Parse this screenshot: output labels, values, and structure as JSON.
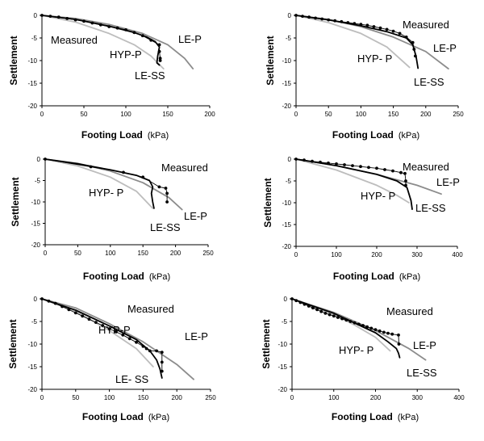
{
  "chart_data": [
    {
      "type": "line",
      "xlabel": "Footing Load",
      "xunit": "(kPa)",
      "ylabel": "Settlement",
      "xlim": [
        0,
        200
      ],
      "xticks": [
        0,
        50,
        100,
        150,
        200
      ],
      "ylim": [
        -20,
        0
      ],
      "yticks": [
        0,
        -5,
        -10,
        -15,
        -20
      ],
      "labels": {
        "measured": "Measured",
        "lep": "LE-P",
        "hyp": "HYP-P",
        "less": "LE-SS"
      },
      "series": [
        {
          "key": "lep",
          "x": [
            0,
            40,
            80,
            120,
            150,
            170,
            180
          ],
          "y": [
            0,
            -0.7,
            -2,
            -4,
            -6.5,
            -9.5,
            -11.8
          ]
        },
        {
          "key": "hyp",
          "x": [
            0,
            40,
            80,
            110,
            130,
            145
          ],
          "y": [
            0,
            -1.5,
            -4,
            -6.5,
            -9,
            -11.8
          ]
        },
        {
          "key": "less",
          "x": [
            0,
            40,
            80,
            110,
            125,
            135,
            140,
            138,
            137,
            140
          ],
          "y": [
            0,
            -0.9,
            -2.4,
            -3.8,
            -4.8,
            -5.8,
            -7,
            -9,
            -10.5,
            -11
          ]
        },
        {
          "key": "measured",
          "x": [
            0,
            10,
            20,
            30,
            40,
            50,
            60,
            70,
            80,
            90,
            100,
            110,
            120,
            130,
            140,
            140,
            141,
            141
          ],
          "y": [
            0,
            -0.2,
            -0.4,
            -0.7,
            -1,
            -1.3,
            -1.7,
            -2.1,
            -2.5,
            -2.8,
            -3.2,
            -3.8,
            -4.5,
            -5.5,
            -6.5,
            -8,
            -9.5,
            -10
          ]
        }
      ]
    },
    {
      "type": "line",
      "xlabel": "Footing Load",
      "xunit": "(kPa)",
      "ylabel": "Settlement",
      "xlim": [
        0,
        250
      ],
      "xticks": [
        0,
        50,
        100,
        150,
        200,
        250
      ],
      "ylim": [
        -20,
        0
      ],
      "yticks": [
        0,
        -5,
        -10,
        -15,
        -20
      ],
      "labels": {
        "measured": "Measured",
        "lep": "LE-P",
        "hyp": "HYP- P",
        "less": "LE-SS"
      },
      "series": [
        {
          "key": "lep",
          "x": [
            0,
            50,
            100,
            150,
            200,
            235
          ],
          "y": [
            0,
            -0.9,
            -2.5,
            -4.8,
            -8,
            -11.8
          ]
        },
        {
          "key": "hyp",
          "x": [
            0,
            50,
            100,
            140,
            175
          ],
          "y": [
            0,
            -1.6,
            -4,
            -7,
            -11.5
          ]
        },
        {
          "key": "less",
          "x": [
            0,
            50,
            100,
            140,
            170,
            180,
            185,
            188
          ],
          "y": [
            0,
            -1,
            -2.3,
            -3.6,
            -5,
            -6.5,
            -9,
            -11.7
          ]
        },
        {
          "key": "measured",
          "x": [
            0,
            10,
            20,
            30,
            40,
            50,
            60,
            70,
            80,
            90,
            100,
            110,
            120,
            130,
            140,
            150,
            160,
            170,
            180,
            182,
            184
          ],
          "y": [
            0,
            -0.2,
            -0.4,
            -0.6,
            -0.8,
            -1,
            -1.2,
            -1.4,
            -1.6,
            -1.8,
            -2,
            -2.2,
            -2.5,
            -2.8,
            -3.1,
            -3.5,
            -4,
            -4.8,
            -6,
            -7.5,
            -9
          ]
        }
      ]
    },
    {
      "type": "line",
      "xlabel": "Footing Load",
      "xunit": "(kPa)",
      "ylabel": "Settlement",
      "xlim": [
        0,
        250
      ],
      "xticks": [
        0,
        50,
        100,
        150,
        200,
        250
      ],
      "ylim": [
        -20,
        0
      ],
      "yticks": [
        0,
        -5,
        -10,
        -15,
        -20
      ],
      "labels": {
        "measured": "Measured",
        "lep": "LE-P",
        "hyp": "HYP- P",
        "less": "LE-SS"
      },
      "series": [
        {
          "key": "lep",
          "x": [
            0,
            50,
            100,
            150,
            190,
            210
          ],
          "y": [
            0,
            -1,
            -2.8,
            -5.5,
            -9,
            -11.8
          ]
        },
        {
          "key": "hyp",
          "x": [
            0,
            50,
            100,
            140,
            165
          ],
          "y": [
            0,
            -1.6,
            -4.2,
            -7.5,
            -11.5
          ]
        },
        {
          "key": "less",
          "x": [
            0,
            50,
            100,
            140,
            160,
            165,
            163,
            165,
            167
          ],
          "y": [
            0,
            -1.1,
            -2.5,
            -3.8,
            -5,
            -6.5,
            -8,
            -10,
            -11.5
          ]
        },
        {
          "key": "measured",
          "x": [
            0,
            70,
            120,
            150,
            175,
            185,
            187,
            187
          ],
          "y": [
            0,
            -1.8,
            -3.1,
            -4.2,
            -6.5,
            -6.8,
            -8,
            -10
          ]
        }
      ]
    },
    {
      "type": "line",
      "xlabel": "Footing Load",
      "xunit": "(kPa)",
      "ylabel": "Settlement",
      "xlim": [
        0,
        400
      ],
      "xticks": [
        0,
        100,
        200,
        300,
        400
      ],
      "ylim": [
        -20,
        0
      ],
      "yticks": [
        0,
        -5,
        -10,
        -15,
        -20
      ],
      "labels": {
        "measured": "Measured",
        "lep": "LE-P",
        "hyp": "HYP- P",
        "less": "LE-SS"
      },
      "series": [
        {
          "key": "lep",
          "x": [
            0,
            100,
            200,
            300,
            360
          ],
          "y": [
            0,
            -1.5,
            -3.5,
            -6,
            -8
          ]
        },
        {
          "key": "hyp",
          "x": [
            0,
            100,
            200,
            250,
            280
          ],
          "y": [
            0,
            -2.5,
            -6,
            -8.3,
            -10
          ]
        },
        {
          "key": "less",
          "x": [
            0,
            100,
            200,
            250,
            275,
            280,
            285,
            288
          ],
          "y": [
            0,
            -1.5,
            -3.5,
            -5,
            -6.5,
            -8,
            -9.5,
            -11.5
          ]
        },
        {
          "key": "measured",
          "x": [
            0,
            20,
            40,
            60,
            80,
            100,
            120,
            140,
            160,
            180,
            200,
            220,
            240,
            260,
            270,
            272,
            272
          ],
          "y": [
            0,
            -0.2,
            -0.5,
            -0.7,
            -0.9,
            -1.1,
            -1.3,
            -1.5,
            -1.7,
            -1.9,
            -2.1,
            -2.4,
            -2.7,
            -3.1,
            -3.3,
            -5,
            -6
          ]
        }
      ]
    },
    {
      "type": "line",
      "xlabel": "Footing Load",
      "xunit": "(kPa)",
      "ylabel": "Settlement",
      "xlim": [
        0,
        250
      ],
      "xticks": [
        0,
        50,
        100,
        150,
        200,
        250
      ],
      "ylim": [
        -20,
        0
      ],
      "yticks": [
        0,
        -5,
        -10,
        -15,
        -20
      ],
      "labels": {
        "measured": "Measured",
        "lep": "LE-P",
        "hyp": "HYP-P",
        "less": "LE- SS"
      },
      "series": [
        {
          "key": "lep",
          "x": [
            0,
            50,
            100,
            150,
            200,
            225
          ],
          "y": [
            0,
            -2,
            -5.5,
            -9.5,
            -14.5,
            -17.8
          ]
        },
        {
          "key": "hyp",
          "x": [
            0,
            50,
            100,
            140,
            165
          ],
          "y": [
            0,
            -2.8,
            -7,
            -11,
            -15
          ]
        },
        {
          "key": "less",
          "x": [
            0,
            50,
            100,
            140,
            160,
            170,
            175,
            178
          ],
          "y": [
            0,
            -2.5,
            -6,
            -9,
            -11.5,
            -13.5,
            -15.5,
            -17.5
          ]
        },
        {
          "key": "measured",
          "x": [
            0,
            10,
            20,
            30,
            40,
            50,
            60,
            70,
            80,
            90,
            100,
            110,
            120,
            130,
            140,
            150,
            155,
            160,
            170,
            178,
            178,
            178
          ],
          "y": [
            0,
            -0.5,
            -1,
            -1.7,
            -2.4,
            -3.1,
            -3.8,
            -4.5,
            -5.2,
            -5.9,
            -6.6,
            -7.3,
            -8,
            -8.8,
            -9.6,
            -10.5,
            -11,
            -11.5,
            -11.5,
            -11.8,
            -14,
            -16
          ]
        }
      ]
    },
    {
      "type": "line",
      "xlabel": "Footing Load",
      "xunit": "(kPa)",
      "ylabel": "Settlement",
      "xlim": [
        0,
        400
      ],
      "xticks": [
        0,
        100,
        200,
        300,
        400
      ],
      "ylim": [
        -20,
        0
      ],
      "yticks": [
        0,
        -5,
        -10,
        -15,
        -20
      ],
      "labels": {
        "measured": "Measured",
        "lep": "LE-P",
        "hyp": "HYP- P",
        "less": "LE-SS"
      },
      "series": [
        {
          "key": "lep",
          "x": [
            0,
            100,
            200,
            280,
            320
          ],
          "y": [
            0,
            -3,
            -7,
            -11,
            -13.5
          ]
        },
        {
          "key": "hyp",
          "x": [
            0,
            100,
            150,
            200,
            235
          ],
          "y": [
            0,
            -3.5,
            -5.8,
            -8.5,
            -11.5
          ]
        },
        {
          "key": "less",
          "x": [
            0,
            100,
            200,
            230,
            250,
            255,
            258
          ],
          "y": [
            0,
            -3.2,
            -7.5,
            -9.5,
            -11,
            -12,
            -13
          ]
        },
        {
          "key": "measured",
          "x": [
            0,
            10,
            20,
            30,
            40,
            50,
            60,
            70,
            80,
            90,
            100,
            110,
            120,
            130,
            140,
            150,
            160,
            170,
            180,
            190,
            200,
            210,
            220,
            230,
            240,
            255,
            256
          ],
          "y": [
            0,
            -0.4,
            -0.8,
            -1.2,
            -1.6,
            -2,
            -2.4,
            -2.8,
            -3.2,
            -3.5,
            -3.8,
            -4.1,
            -4.4,
            -4.7,
            -5,
            -5.3,
            -5.6,
            -5.9,
            -6.2,
            -6.5,
            -6.8,
            -7.1,
            -7.4,
            -7.6,
            -7.8,
            -8,
            -10
          ]
        }
      ]
    }
  ]
}
